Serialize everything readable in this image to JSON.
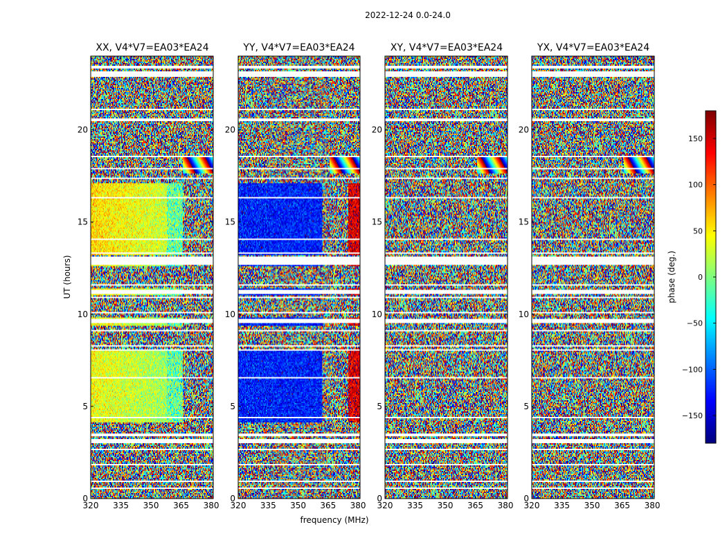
{
  "chart_data": {
    "type": "heatmap",
    "suptitle": "2022-12-24 0.0-24.0",
    "panels": [
      {
        "title": "XX, V4*V7=EA03*EA24",
        "phase_model": "xx"
      },
      {
        "title": "YY, V4*V7=EA03*EA24",
        "phase_model": "yy"
      },
      {
        "title": "XY, V4*V7=EA03*EA24",
        "phase_model": "noise"
      },
      {
        "title": "YX, V4*V7=EA03*EA24",
        "phase_model": "noise"
      }
    ],
    "xlabel": "frequency (MHz)",
    "ylabel": "UT (hours)",
    "xlim": [
      320,
      381
    ],
    "ylim": [
      0,
      24
    ],
    "x_ticks": [
      "320",
      "335",
      "350",
      "365",
      "380"
    ],
    "y_ticks": [
      "0",
      "5",
      "10",
      "15",
      "20"
    ],
    "colorbar": {
      "label": "phase (deg.)",
      "range": [
        -180,
        180
      ],
      "ticks": [
        "−150",
        "−100",
        "−50",
        "0",
        "50",
        "100",
        "150"
      ],
      "colormap": "jet"
    },
    "flagged_hours": [
      [
        3.0,
        3.25
      ],
      [
        3.4,
        3.55
      ],
      [
        9.5,
        9.75
      ],
      [
        11.1,
        11.3
      ],
      [
        12.7,
        13.1
      ],
      [
        17.3,
        17.4
      ],
      [
        20.5,
        20.6
      ],
      [
        22.9,
        23.2
      ],
      [
        23.3,
        23.45
      ]
    ],
    "flagged_line_hours": [
      0.55,
      0.95,
      1.5,
      1.85,
      2.25,
      2.65,
      4.05,
      4.4,
      5.1,
      5.85,
      6.55,
      7.2,
      8.05,
      8.3,
      9.1,
      10.1,
      10.9,
      11.6,
      12.3,
      13.3,
      14.05,
      14.7,
      15.3,
      15.9,
      16.3,
      16.95,
      17.9,
      18.55,
      19.2,
      19.8,
      20.1,
      21.1,
      21.6,
      22.05,
      22.5,
      23.0
    ]
  }
}
